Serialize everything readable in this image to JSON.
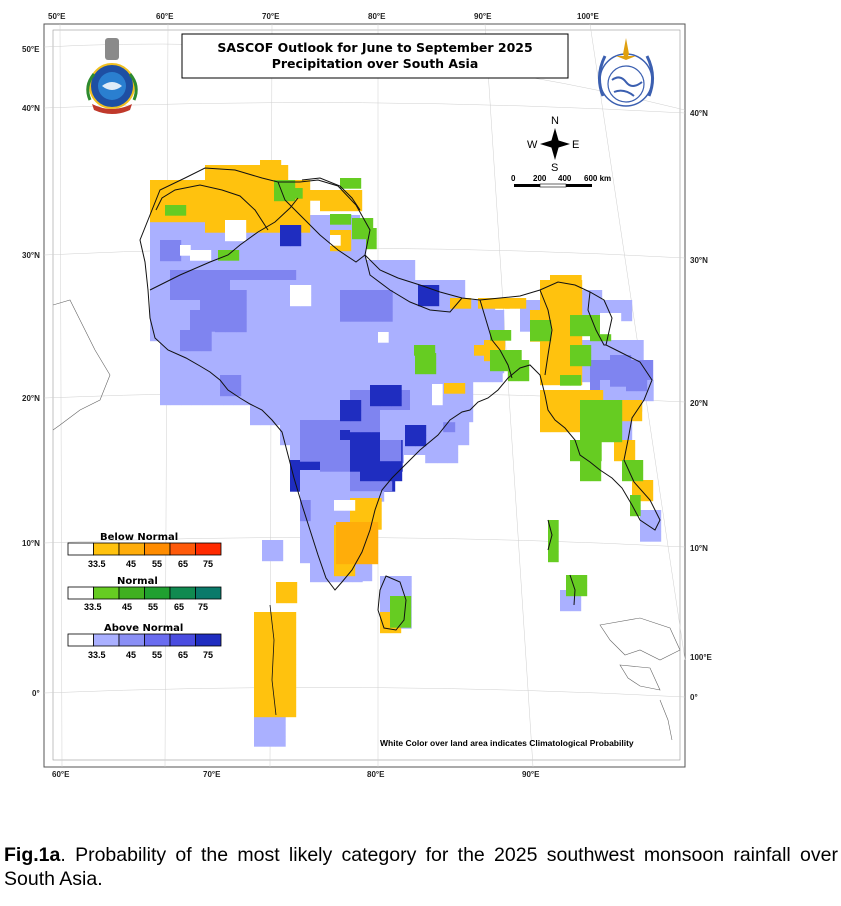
{
  "map": {
    "title_line1": "SASCOF Outlook for June to September 2025",
    "title_line2": "Precipitation over South Asia",
    "lon_ticks_top": [
      "50°E",
      "60°E",
      "70°E",
      "80°E",
      "90°E",
      "100°E"
    ],
    "lon_ticks_bottom": [
      "60°E",
      "70°E",
      "80°E",
      "90°E"
    ],
    "lat_ticks_left": [
      "50°E",
      "40°N",
      "30°N",
      "20°N",
      "10°N",
      "0°"
    ],
    "lat_ticks_right": [
      "40°N",
      "30°N",
      "20°N",
      "10°N",
      "100°E",
      "0°"
    ],
    "compass": {
      "n": "N",
      "s": "S",
      "e": "E",
      "w": "W"
    },
    "scale_labels": [
      "0",
      "200",
      "400",
      "600 km"
    ],
    "note": "White Color over land area indicates Climatological Probability",
    "legend": {
      "below": {
        "title": "Below Normal",
        "values": [
          "33.5",
          "45",
          "55",
          "65",
          "75"
        ],
        "colors": [
          "#ffffff",
          "#ffc20e",
          "#ffad0a",
          "#ff8c00",
          "#ff5a0a",
          "#ff2a00"
        ]
      },
      "normal": {
        "title": "Normal",
        "values": [
          "33.5",
          "45",
          "55",
          "65",
          "75"
        ],
        "colors": [
          "#ffffff",
          "#66cc22",
          "#40b020",
          "#20a030",
          "#108a50",
          "#0a7a6a"
        ]
      },
      "above": {
        "title": "Above Normal",
        "values": [
          "33.5",
          "45",
          "55",
          "65",
          "75"
        ],
        "colors": [
          "#ffffff",
          "#aab0ff",
          "#8a8ff5",
          "#6a6cf0",
          "#4a4ce0",
          "#1f2dc0"
        ]
      }
    },
    "colors": {
      "below_normal": "#ffc20e",
      "normal": "#66cc22",
      "above_light": "#aab0ff",
      "above_mid": "#7f84f0",
      "above_dark": "#1f2dc0",
      "land_climatology": "#ffffff"
    },
    "icons": [
      "imd-emblem-icon",
      "wmo-emblem-icon",
      "compass-rose-icon"
    ]
  },
  "caption": {
    "label": "Fig.1a",
    "text": ". Probability of the most likely category for the 2025 southwest monsoon rainfall over South Asia."
  }
}
